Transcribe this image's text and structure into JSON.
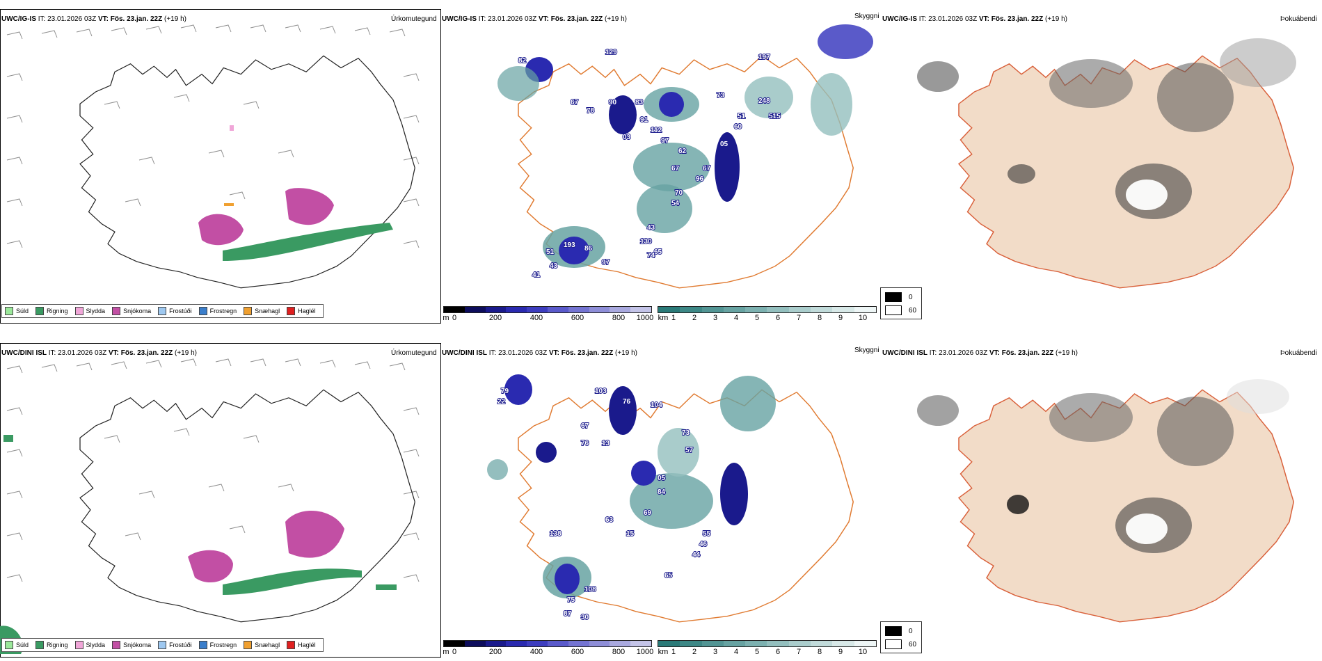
{
  "rows": [
    {
      "header": {
        "model": "UWC/IG-IS",
        "it_label": "IT:",
        "it_value": "23.01.2026 03Z",
        "vt_label": "VT:",
        "vt_value": "Fös. 23.jan. 22Z",
        "lead": "(+19 h)"
      },
      "numbers": [
        "82",
        "129",
        "197",
        "67",
        "78",
        "90",
        "83",
        "91",
        "73",
        "112",
        "51",
        "60",
        "248",
        "515",
        "03",
        "97",
        "62",
        "05",
        "67",
        "96",
        "67",
        "70",
        "54",
        "43",
        "130",
        "65",
        "74",
        "97",
        "43",
        "51",
        "193",
        "86",
        "41"
      ]
    },
    {
      "header": {
        "model": "UWC/DINI ISL",
        "it_label": "IT:",
        "it_value": "23.01.2026 03Z",
        "vt_label": "VT:",
        "vt_value": "Fös. 23.jan. 22Z",
        "lead": "(+19 h)"
      },
      "numbers": [
        "79",
        "22",
        "103",
        "76",
        "104",
        "67",
        "76",
        "13",
        "73",
        "57",
        "05",
        "84",
        "69",
        "63",
        "15",
        "138",
        "55",
        "46",
        "44",
        "65",
        "108",
        "75",
        "87",
        "30"
      ]
    }
  ],
  "panels": {
    "precip_title": "Úrkomutegund",
    "cloud_title": "Skyggni",
    "fog_title": "Þokuábendi"
  },
  "precip_legend": [
    {
      "label": "Súld",
      "color": "#9be89b"
    },
    {
      "label": "Rigning",
      "color": "#3a9a62"
    },
    {
      "label": "Slydda",
      "color": "#f0a6d8"
    },
    {
      "label": "Snjókoma",
      "color": "#c24fa4"
    },
    {
      "label": "Frostúði",
      "color": "#9ec8f0"
    },
    {
      "label": "Frostregn",
      "color": "#3a7ecb"
    },
    {
      "label": "Snæhagl",
      "color": "#f0a030"
    },
    {
      "label": "Haglél",
      "color": "#e02020"
    }
  ],
  "cloud_height_bar": {
    "unit": "m",
    "ticks": [
      "0",
      "200",
      "400",
      "600",
      "800",
      "1000"
    ],
    "colors": [
      "#000000",
      "#0d0d5c",
      "#1a1a8c",
      "#2a2ab0",
      "#3d3dbf",
      "#5a5acb",
      "#7474d2",
      "#8e8ed8",
      "#a9a9df",
      "#c4c4e8"
    ]
  },
  "visibility_bar": {
    "unit": "km",
    "ticks": [
      "1",
      "2",
      "3",
      "4",
      "5",
      "6",
      "7",
      "8",
      "9",
      "10"
    ],
    "colors": [
      "#2a7a78",
      "#3d8886",
      "#529594",
      "#67a3a2",
      "#7cb1b0",
      "#93bfbe",
      "#aacdcc",
      "#c1dbda",
      "#d8e9e8",
      "#eef6f6"
    ]
  },
  "fog_legend": [
    {
      "value": "0",
      "color": "#000000"
    },
    {
      "value": "60",
      "color": "#ffffff"
    }
  ]
}
